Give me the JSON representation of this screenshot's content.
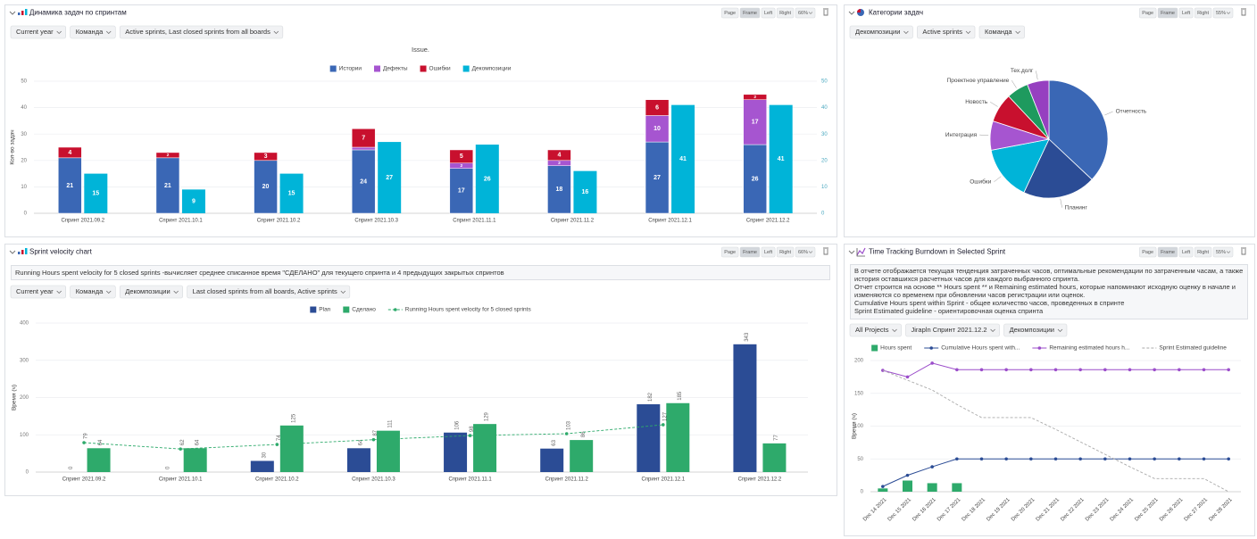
{
  "panels": [
    {
      "title": "Динамика задач по спринтам",
      "buttons": [
        "Page",
        "Frame",
        "Left",
        "Right",
        "66%"
      ],
      "filters": [
        "Current year",
        "Команда",
        "Active sprints, Last closed sprints from all boards"
      ]
    },
    {
      "title": "Категории задач",
      "buttons": [
        "Page",
        "Frame",
        "Left",
        "Right",
        "55%"
      ],
      "filters": [
        "Декомпозиции",
        "Active sprints",
        "Команда"
      ]
    },
    {
      "title": "Sprint velocity chart",
      "buttons": [
        "Page",
        "Frame",
        "Left",
        "Right",
        "66%"
      ],
      "description": [
        "Running Hours spent velocity for 5 closed sprints -вычисляет среднее списанное время \"СДЕЛАНО\" для текущего спринта и 4 предыдущих закрытых спринтов"
      ],
      "filters": [
        "Current year",
        "Команда",
        "Декомпозиции",
        "Last closed sprints from all boards, Active sprints"
      ]
    },
    {
      "title": "Time Tracking Burndown in Selected Sprint",
      "buttons": [
        "Page",
        "Frame",
        "Left",
        "Right",
        "55%"
      ],
      "description": [
        "В отчете отображается текущая тенденция затраченных часов, оптимальные рекомендации по затраченным часам, а также история оставшихся расчетных часов для каждого выбранного спринта.",
        "Отчет строится на основе ** Hours spent ** и Remaining estimated hours, которые напоминают исходную оценку в начале и изменяются со временем при обновлении часов регистрации или оценок.",
        "Cumulative Hours spent within Sprint - общее количество часов, проведенных в спринте",
        "Sprint Estimated guideline - ориентировочная оценка спринта"
      ],
      "filters": [
        "All Projects",
        "Jirapln Спринт 2021.12.2",
        "Декомпозиции"
      ]
    }
  ],
  "chart_data": [
    {
      "type": "bar",
      "title": "Issue.",
      "y_label": "Кол-во задач",
      "grid": true,
      "categories": [
        "Спринт 2021.09.2",
        "Спринт 2021.10.1",
        "Спринт 2021.10.2",
        "Спринт 2021.10.3",
        "Спринт 2021.11.1",
        "Спринт 2021.11.2",
        "Спринт 2021.12.1",
        "Спринт 2021.12.2"
      ],
      "series": [
        {
          "name": "Истории",
          "color": "#3a67b5",
          "stack": "issues",
          "values": [
            21,
            21,
            20,
            24,
            17,
            18,
            27,
            26
          ]
        },
        {
          "name": "Дефекты",
          "color": "#a655d0",
          "stack": "issues",
          "values": [
            0,
            0,
            0,
            1,
            2,
            2,
            10,
            17
          ]
        },
        {
          "name": "Ошибки",
          "color": "#c8102e",
          "stack": "issues",
          "values": [
            4,
            2,
            3,
            7,
            5,
            4,
            6,
            2
          ]
        },
        {
          "name": "Декомпозиции",
          "color": "#00b4d8",
          "values": [
            15,
            9,
            15,
            27,
            26,
            16,
            41,
            41
          ]
        }
      ],
      "ylim": [
        0,
        50
      ],
      "yticks": [
        0,
        10,
        20,
        30,
        40,
        50
      ],
      "y2lim": [
        0,
        50
      ],
      "y2ticks": [
        0,
        10,
        20,
        30,
        40,
        50
      ]
    },
    {
      "type": "pie",
      "categories": [
        "Отчетность",
        "Планинг",
        "Ошибки",
        "Интеграция",
        "Новость",
        "Проектное управление",
        "Тех.долг"
      ],
      "values": [
        37,
        20,
        15,
        8,
        8,
        6,
        6
      ],
      "colors": [
        "#3a67b5",
        "#2b4c95",
        "#00b4d8",
        "#a655d0",
        "#c8102e",
        "#1e9a5e",
        "#9640c0"
      ]
    },
    {
      "type": "bar",
      "y_label": "Время (ч)",
      "grid": true,
      "categories": [
        "Спринт 2021.09.2",
        "Спринт 2021.10.1",
        "Спринт 2021.10.2",
        "Спринт 2021.10.3",
        "Спринт 2021.11.1",
        "Спринт 2021.11.2",
        "Спринт 2021.12.1",
        "Спринт 2021.12.2"
      ],
      "series": [
        {
          "name": "Plan",
          "color": "#2b4c95",
          "values": [
            0,
            0,
            30,
            64,
            106,
            63,
            182,
            343
          ]
        },
        {
          "name": "Сделано",
          "color": "#2eaa6b",
          "values": [
            64,
            64,
            125,
            111,
            129,
            86,
            185,
            77
          ]
        },
        {
          "name": "Running Hours spent velocity for 5 closed sprints",
          "type": "line",
          "dashed": true,
          "color": "#2eaa6b",
          "values": [
            79,
            62,
            74,
            87,
            98,
            103,
            127,
            null
          ]
        }
      ],
      "ylim": [
        0,
        400
      ],
      "yticks": [
        0,
        100,
        200,
        300,
        400
      ]
    },
    {
      "type": "line",
      "y_label": "Время (ч)",
      "grid": true,
      "categories": [
        "Dec 14 2021",
        "Dec 15 2021",
        "Dec 16 2021",
        "Dec 17 2021",
        "Dec 18 2021",
        "Dec 19 2021",
        "Dec 20 2021",
        "Dec 21 2021",
        "Dec 22 2021",
        "Dec 23 2021",
        "Dec 24 2021",
        "Dec 25 2021",
        "Dec 26 2021",
        "Dec 27 2021",
        "Dec 28 2021"
      ],
      "series": [
        {
          "name": "Hours spent",
          "type": "bar",
          "color": "#2eaa6b",
          "values": [
            5,
            17,
            13,
            13,
            null,
            null,
            null,
            null,
            null,
            null,
            null,
            null,
            null,
            null,
            null
          ]
        },
        {
          "name": "Cumulative Hours spent with...",
          "color": "#2b4c95",
          "values": [
            8,
            25,
            38,
            50,
            50,
            50,
            50,
            50,
            50,
            50,
            50,
            50,
            50,
            50,
            50
          ]
        },
        {
          "name": "Remaining estimated hours h...",
          "color": "#9b4dca",
          "values": [
            185,
            175,
            196,
            186,
            186,
            186,
            186,
            186,
            186,
            186,
            186,
            186,
            186,
            186,
            186
          ]
        },
        {
          "name": "Sprint Estimated guideline",
          "color": "#aaaaaa",
          "dashed": true,
          "markers": false,
          "values": [
            185,
            170,
            155,
            133,
            113,
            113,
            113,
            95,
            76,
            57,
            38,
            20,
            20,
            20,
            0
          ]
        }
      ],
      "ylim": [
        0,
        200
      ],
      "yticks": [
        0,
        50,
        100,
        150,
        200
      ]
    }
  ]
}
